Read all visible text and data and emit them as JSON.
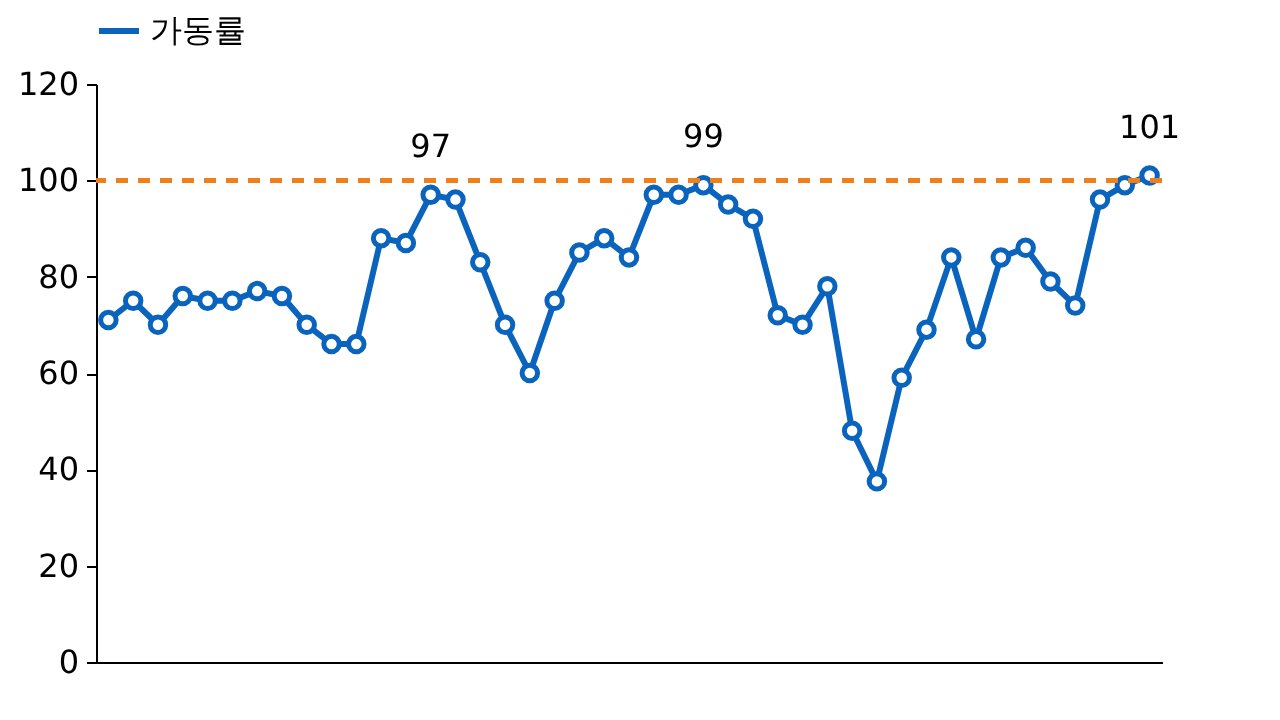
{
  "chart_data": {
    "type": "line",
    "categories": [
      null,
      null,
      null,
      null,
      null,
      null,
      null,
      null,
      null,
      null,
      null,
      null,
      null,
      null,
      null,
      null,
      null,
      null,
      null,
      null,
      null,
      null,
      null,
      null,
      null,
      null,
      null,
      null,
      null,
      null,
      null,
      null,
      null,
      null,
      null,
      null,
      null,
      null,
      null,
      null,
      null,
      null,
      null
    ],
    "series": [
      {
        "name": "가동률",
        "color": "#0a64be",
        "values": [
          71,
          75,
          70,
          76,
          75,
          75,
          77,
          76,
          70,
          66,
          66,
          88,
          87,
          97,
          96,
          83,
          70,
          60,
          75,
          85,
          88,
          84,
          97,
          97,
          99,
          95,
          92,
          72,
          70,
          78,
          48,
          37.5,
          59,
          69,
          84,
          67,
          84,
          86,
          79,
          74,
          96,
          99,
          101
        ],
        "value_labels": [
          null,
          null,
          null,
          null,
          null,
          null,
          null,
          null,
          null,
          null,
          null,
          null,
          null,
          "97",
          null,
          null,
          null,
          null,
          null,
          null,
          null,
          null,
          null,
          null,
          "99",
          null,
          null,
          null,
          null,
          null,
          null,
          null,
          null,
          null,
          null,
          null,
          null,
          null,
          null,
          null,
          null,
          null,
          "101"
        ]
      }
    ],
    "ylim": [
      0,
      120
    ],
    "yticks": [
      0,
      20,
      40,
      60,
      80,
      100,
      120
    ],
    "grid": false,
    "legend": "top",
    "marker": "circle",
    "line_style": "solid",
    "tick_labels": "y",
    "ref_lines": [
      {
        "axis": "y",
        "value": 100,
        "color": "#f07f1a",
        "line_style": "dashed"
      }
    ]
  }
}
